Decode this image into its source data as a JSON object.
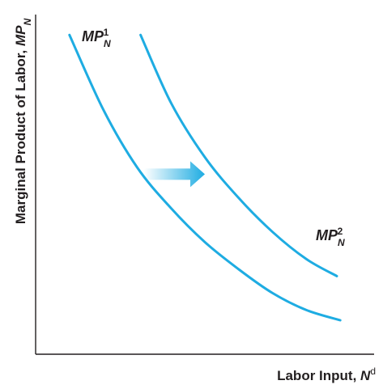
{
  "chart_data": {
    "type": "line",
    "title": "",
    "xlabel": "Labor Input, N",
    "xlabel_parts": {
      "text": "Labor Input, ",
      "var": "N",
      "sup": "d"
    },
    "ylabel": "Marginal Product of Labor, MP_N",
    "ylabel_parts": {
      "text": "Marginal Product of Labor, ",
      "var": "MP",
      "sub": "N"
    },
    "xlim": [
      0,
      10
    ],
    "ylim": [
      0,
      10
    ],
    "ticks": "none",
    "grid": false,
    "legend": "none",
    "series": [
      {
        "name": "MP_N^1",
        "label_parts": {
          "var": "MP",
          "sub": "N",
          "sup": "1"
        },
        "color": "#1eace2",
        "x": [
          1.0,
          2.0,
          3.0,
          4.0,
          5.0,
          6.0,
          7.0,
          8.0,
          9.0
        ],
        "y": [
          9.4,
          7.2,
          5.5,
          4.3,
          3.3,
          2.5,
          1.8,
          1.3,
          1.0
        ]
      },
      {
        "name": "MP_N^2",
        "label_parts": {
          "var": "MP",
          "sub": "N",
          "sup": "2"
        },
        "color": "#1eace2",
        "x": [
          3.1,
          4.0,
          5.0,
          6.0,
          7.0,
          8.0,
          8.9
        ],
        "y": [
          9.4,
          7.4,
          5.8,
          4.6,
          3.6,
          2.8,
          2.3
        ]
      }
    ],
    "annotations": [
      {
        "type": "arrow",
        "meaning": "rightward shift of the marginal product of labor curve",
        "from": [
          3.2,
          5.3
        ],
        "to": [
          5.0,
          5.3
        ],
        "color": "#1eace2"
      }
    ]
  }
}
